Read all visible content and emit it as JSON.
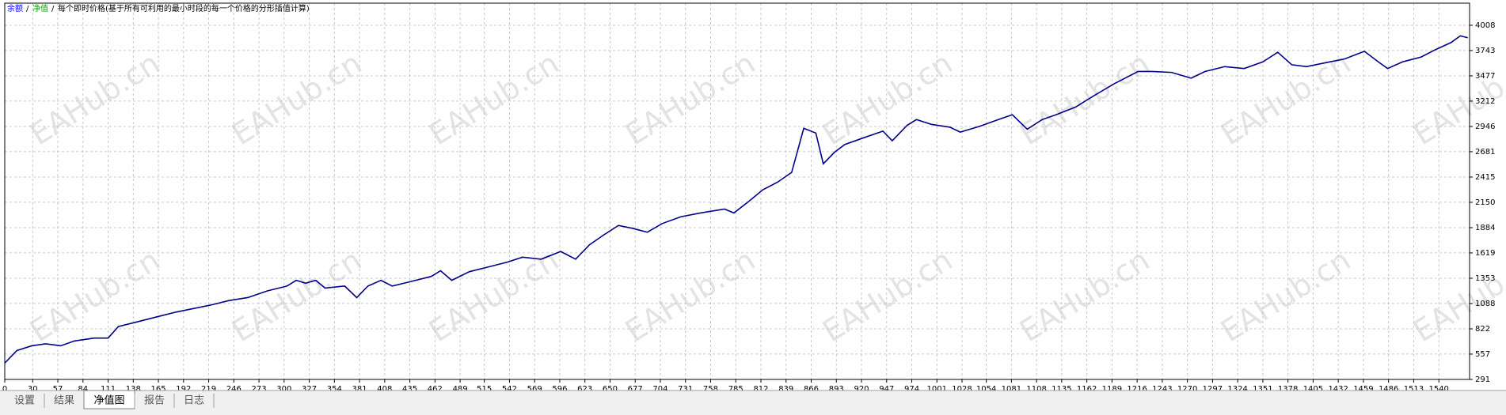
{
  "chart_data": {
    "type": "line",
    "separator": "/",
    "equity_label": "净值",
    "subtitle": "每个即时价格(基于所有可利用的最小时段的每一个价格的分形插值计算)",
    "watermark": "EAHub.cn",
    "x": [
      0,
      13,
      29,
      44,
      60,
      75,
      96,
      111,
      122,
      143,
      163,
      184,
      199,
      220,
      241,
      261,
      282,
      303,
      313,
      323,
      334,
      344,
      365,
      378,
      390,
      404,
      416,
      437,
      458,
      468,
      480,
      499,
      520,
      540,
      556,
      576,
      597,
      613,
      628,
      643,
      659,
      674,
      690,
      706,
      726,
      747,
      773,
      783,
      799,
      814,
      830,
      845,
      858,
      871,
      879,
      891,
      902,
      922,
      943,
      953,
      969,
      979,
      995,
      1015,
      1026,
      1047,
      1067,
      1082,
      1098,
      1114,
      1129,
      1150,
      1170,
      1191,
      1217,
      1232,
      1253,
      1274,
      1289,
      1310,
      1331,
      1351,
      1367,
      1382,
      1398,
      1418,
      1439,
      1460,
      1475,
      1485,
      1501,
      1521,
      1537,
      1553,
      1563,
      1571
    ],
    "series": [
      {
        "name": "余额",
        "color": "#00008b",
        "values": [
          463,
          594,
          644,
          665,
          644,
          695,
          725,
          725,
          846,
          897,
          947,
          998,
          1028,
          1069,
          1119,
          1150,
          1220,
          1271,
          1331,
          1301,
          1331,
          1250,
          1271,
          1150,
          1271,
          1331,
          1271,
          1321,
          1372,
          1432,
          1331,
          1422,
          1473,
          1523,
          1574,
          1553,
          1634,
          1553,
          1705,
          1806,
          1907,
          1877,
          1836,
          1927,
          1998,
          2038,
          2079,
          2038,
          2160,
          2281,
          2362,
          2463,
          2927,
          2877,
          2554,
          2675,
          2756,
          2826,
          2897,
          2796,
          2958,
          3018,
          2968,
          2938,
          2887,
          2948,
          3018,
          3069,
          2917,
          3018,
          3069,
          3150,
          3271,
          3392,
          3523,
          3523,
          3513,
          3453,
          3523,
          3574,
          3554,
          3624,
          3725,
          3594,
          3574,
          3614,
          3655,
          3735,
          3624,
          3554,
          3624,
          3675,
          3755,
          3826,
          3897,
          3877
        ]
      }
    ],
    "xlim": [
      0,
      1573
    ],
    "ylim": [
      291,
      4240
    ],
    "xticks": [
      0,
      30,
      57,
      84,
      111,
      138,
      165,
      192,
      219,
      246,
      273,
      300,
      327,
      354,
      381,
      408,
      435,
      462,
      489,
      515,
      542,
      569,
      596,
      623,
      650,
      677,
      704,
      731,
      758,
      785,
      812,
      839,
      866,
      893,
      920,
      947,
      974,
      1001,
      1028,
      1054,
      1081,
      1108,
      1135,
      1162,
      1189,
      1216,
      1243,
      1270,
      1297,
      1324,
      1351,
      1378,
      1405,
      1432,
      1459,
      1486,
      1513,
      1540
    ],
    "yticks": [
      291,
      557,
      822,
      1088,
      1353,
      1619,
      1884,
      2150,
      2415,
      2681,
      2946,
      3212,
      3477,
      3743,
      4008
    ],
    "grid": true,
    "tabs": [
      "设置",
      "结果",
      "净值图",
      "报告",
      "日志"
    ],
    "active_tab": 2
  }
}
